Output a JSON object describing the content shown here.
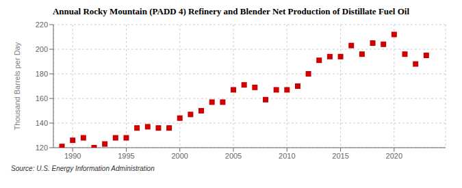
{
  "chart_data": {
    "type": "scatter",
    "title": "Annual Rocky Mountain (PADD 4) Refinery and Blender Net Production of Distillate Fuel Oil",
    "ylabel": "Thousand Barrels per Day",
    "annotation": "Source: U.S. Energy Information Administration",
    "x": [
      1989,
      1990,
      1991,
      1992,
      1993,
      1994,
      1995,
      1996,
      1997,
      1998,
      1999,
      2000,
      2001,
      2002,
      2003,
      2004,
      2005,
      2006,
      2007,
      2008,
      2009,
      2010,
      2011,
      2012,
      2013,
      2014,
      2015,
      2016,
      2017,
      2018,
      2019,
      2020,
      2021,
      2022,
      2023
    ],
    "values": [
      121,
      126,
      128,
      120,
      123,
      128,
      128,
      136,
      137,
      136,
      136,
      144,
      147,
      150,
      157,
      157,
      167,
      171,
      169,
      159,
      167,
      167,
      170,
      180,
      191,
      194,
      194,
      203,
      196,
      205,
      204,
      212,
      196,
      188,
      195
    ],
    "color": "#cc0000",
    "marker": "square",
    "xlim": [
      1988.2,
      2024.8
    ],
    "xticks": [
      1990,
      1995,
      2000,
      2005,
      2010,
      2015,
      2020
    ],
    "ylim": [
      120,
      220
    ],
    "yticks": [
      120,
      140,
      160,
      180,
      200,
      220
    ],
    "grid": true
  }
}
